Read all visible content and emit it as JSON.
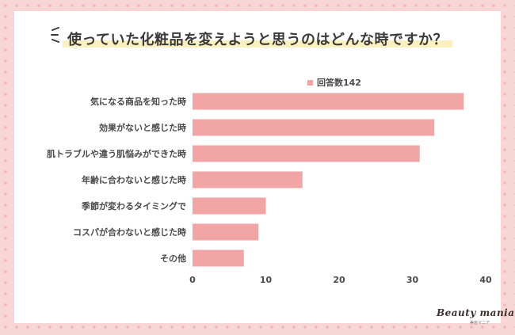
{
  "title": "使っていた化粧品を変えようと思うのはどんな時ですか？",
  "logo": {
    "name": "Beauty mania",
    "subtitle": "美容マニア"
  },
  "chart_data": {
    "type": "bar",
    "orientation": "horizontal",
    "title": "使っていた化粧品を変えようと思うのはどんな時ですか？",
    "categories": [
      "気になる商品を知った時",
      "効果がないと感じた時",
      "肌トラブルや違う肌悩みができた時",
      "年齢に合わないと感じた時",
      "季節が変わるタイミングで",
      "コスパが合わないと感じた時",
      "その他"
    ],
    "series": [
      {
        "name": "回答数142",
        "values": [
          37,
          33,
          31,
          15,
          10,
          9,
          7
        ],
        "color": "#f2a5a5"
      }
    ],
    "xlim": [
      0,
      40
    ],
    "xticks": [
      0,
      10,
      20,
      30,
      40
    ],
    "grid": false,
    "legend": "top"
  },
  "colors": {
    "background": "#f9d6d6",
    "card": "#ffffff",
    "bar": "#f2a5a5",
    "highlight": "#fbf1bf",
    "text": "#3a3a3a"
  }
}
